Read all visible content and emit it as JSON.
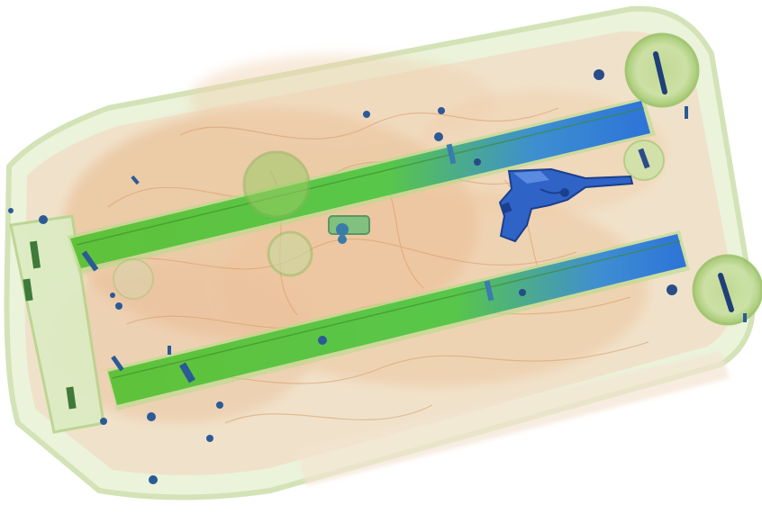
{
  "scan": {
    "kind": "x-ray baggage scan",
    "subject": "suitcase",
    "detected_object": "handgun",
    "colors": {
      "background": "#ffffff",
      "organic": "#e8a878",
      "organic_dark": "#d98a52",
      "mixed": "#a8d27a",
      "mixed_dark": "#6fbf3f",
      "dense": "#2f6fd6",
      "dense_dark": "#1d3f9a",
      "metal": "#1f2f6a"
    }
  }
}
